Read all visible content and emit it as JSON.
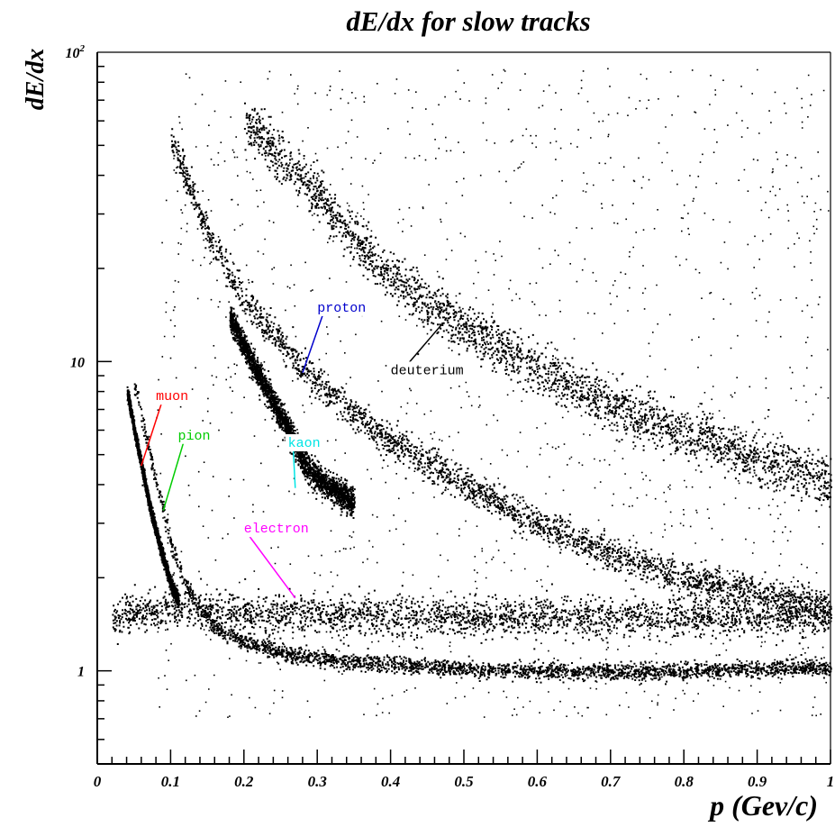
{
  "chart_data": {
    "type": "scatter",
    "title": "dE/dx for slow tracks",
    "xlabel": "p (Gev/c)",
    "ylabel": "dE/dx",
    "xlim": [
      0,
      1
    ],
    "ylim": [
      0.5,
      100
    ],
    "y_scale": "log",
    "grid": false,
    "x_ticks": [
      {
        "value": 0,
        "label": "0"
      },
      {
        "value": 0.1,
        "label": "0.1"
      },
      {
        "value": 0.2,
        "label": "0.2"
      },
      {
        "value": 0.3,
        "label": "0.3"
      },
      {
        "value": 0.4,
        "label": "0.4"
      },
      {
        "value": 0.5,
        "label": "0.5"
      },
      {
        "value": 0.6,
        "label": "0.6"
      },
      {
        "value": 0.7,
        "label": "0.7"
      },
      {
        "value": 0.8,
        "label": "0.8"
      },
      {
        "value": 0.9,
        "label": "0.9"
      },
      {
        "value": 1,
        "label": "1"
      }
    ],
    "y_ticks": [
      {
        "value": 1,
        "label": "1"
      },
      {
        "value": 10,
        "label": "10"
      },
      {
        "value": 100,
        "label": "10",
        "sup": "2"
      }
    ],
    "series": [
      {
        "name": "electron",
        "color": "#000000",
        "x": [
          0.02,
          0.05,
          0.1,
          0.15,
          0.2,
          0.3,
          0.4,
          0.5,
          0.6,
          0.7,
          0.8,
          0.9,
          1.0
        ],
        "y": [
          1.45,
          1.55,
          1.6,
          1.58,
          1.55,
          1.52,
          1.5,
          1.5,
          1.5,
          1.5,
          1.5,
          1.5,
          1.5
        ]
      },
      {
        "name": "muon",
        "color": "#000000",
        "x": [
          0.04,
          0.05,
          0.06,
          0.07,
          0.08,
          0.09,
          0.1,
          0.11
        ],
        "y": [
          8.0,
          6.0,
          4.6,
          3.5,
          2.8,
          2.3,
          1.9,
          1.7
        ]
      },
      {
        "name": "pion",
        "color": "#000000",
        "x": [
          0.05,
          0.06,
          0.07,
          0.08,
          0.09,
          0.1,
          0.12,
          0.14,
          0.16,
          0.2,
          0.25,
          0.3,
          0.4,
          0.5,
          0.6,
          0.7,
          0.8,
          0.9,
          1.0
        ],
        "y": [
          8.5,
          6.6,
          5.2,
          4.1,
          3.3,
          2.6,
          1.9,
          1.6,
          1.4,
          1.25,
          1.15,
          1.1,
          1.05,
          1.02,
          1.0,
          1.0,
          1.0,
          1.02,
          1.03
        ]
      },
      {
        "name": "kaon",
        "color": "#000000",
        "x": [
          0.18,
          0.22,
          0.26,
          0.28,
          0.3,
          0.35
        ],
        "y": [
          14.0,
          9.0,
          6.0,
          4.8,
          4.2,
          3.5
        ]
      },
      {
        "name": "proton",
        "color": "#000000",
        "x": [
          0.1,
          0.12,
          0.15,
          0.2,
          0.25,
          0.3,
          0.35,
          0.4,
          0.5,
          0.6,
          0.7,
          0.8,
          0.9,
          1.0
        ],
        "y": [
          52,
          40,
          26,
          16,
          11.5,
          8.6,
          6.8,
          5.5,
          4.0,
          3.0,
          2.4,
          2.0,
          1.8,
          1.6
        ]
      },
      {
        "name": "deuterium",
        "color": "#000000",
        "x": [
          0.2,
          0.25,
          0.3,
          0.35,
          0.4,
          0.45,
          0.5,
          0.6,
          0.7,
          0.8,
          0.9,
          1.0
        ],
        "y": [
          60,
          45,
          35,
          25,
          19,
          15.5,
          13,
          9.5,
          7.3,
          5.9,
          4.9,
          4.1
        ]
      }
    ],
    "annotations": [
      {
        "text": "muon",
        "color": "#ff0000",
        "x": 0.08,
        "y": 7.5,
        "arrow_to": [
          0.06,
          4.6
        ]
      },
      {
        "text": "pion",
        "color": "#00cc00",
        "x": 0.11,
        "y": 5.6,
        "arrow_to": [
          0.09,
          3.3
        ]
      },
      {
        "text": "kaon",
        "color": "#00e5e5",
        "x": 0.26,
        "y": 5.3,
        "arrow_to": [
          0.27,
          3.9
        ]
      },
      {
        "text": "proton",
        "color": "#0000cc",
        "x": 0.3,
        "y": 14.5,
        "arrow_to": [
          0.28,
          9.2
        ]
      },
      {
        "text": "deuterium",
        "color": "#000000",
        "x": 0.4,
        "y": 9.1,
        "arrow_to": [
          0.47,
          13.2
        ]
      },
      {
        "text": "electron",
        "color": "#ff00ff",
        "x": 0.2,
        "y": 2.8,
        "arrow_to": [
          0.27,
          1.72
        ]
      }
    ]
  }
}
